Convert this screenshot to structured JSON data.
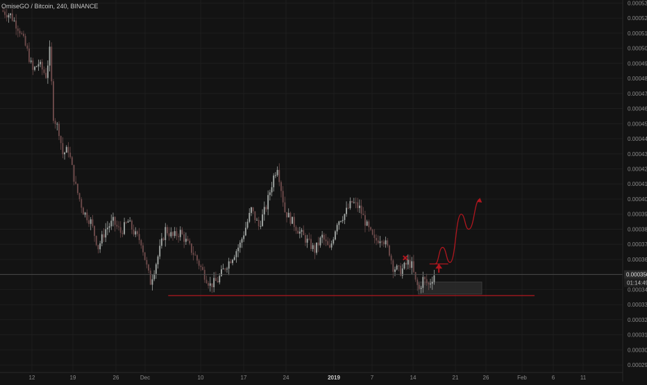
{
  "header": {
    "symbol_title": "OmiseGO / Bitcoin, 240, BINANCE"
  },
  "price_axis": {
    "current_price_label": "0.000350",
    "countdown_label": "01:14:49"
  },
  "colors": {
    "background": "#131313",
    "grid": "#1e1e1e",
    "axis_text": "#8a8a8a",
    "candle_up": "#a4a9a6",
    "candle_down": "#6e4b4b",
    "annotation": "#b0171f",
    "price_tag_bg": "#2a2a2a",
    "price_tag_text": "#e0e0e0"
  },
  "chart_data": {
    "type": "candlestick",
    "title": "OmiseGO / Bitcoin, 240, BINANCE",
    "xlabel": "",
    "ylabel": "",
    "ylim": [
      0.000285,
      0.000532
    ],
    "y_ticks": [
      "0.000290",
      "0.000300",
      "0.000310",
      "0.000320",
      "0.000330",
      "0.000340",
      "0.000350",
      "0.000360",
      "0.000370",
      "0.000380",
      "0.000390",
      "0.000400",
      "0.000410",
      "0.000420",
      "0.000430",
      "0.000440",
      "0.000450",
      "0.000460",
      "0.000470",
      "0.000480",
      "0.000490",
      "0.000500",
      "0.000510",
      "0.000520",
      "0.000530"
    ],
    "x_ticks": [
      "12",
      "19",
      "26",
      "Dec",
      "10",
      "17",
      "24",
      "2019",
      "7",
      "14",
      "21",
      "26",
      "Feb",
      "6",
      "11"
    ],
    "x_tick_bold": [
      "2019"
    ],
    "grid": true,
    "last_price": 0.00035,
    "series": [
      {
        "name": "",
        "trend_points": [
          {
            "t": 0,
            "p": 0.000525
          },
          {
            "t": 5,
            "p": 0.000522
          },
          {
            "t": 10,
            "p": 0.000512
          },
          {
            "t": 14,
            "p": 0.000498
          },
          {
            "t": 17,
            "p": 0.000485
          },
          {
            "t": 20,
            "p": 0.00049
          },
          {
            "t": 24,
            "p": 0.000482
          },
          {
            "t": 26,
            "p": 0.000498
          },
          {
            "t": 28,
            "p": 0.000455
          },
          {
            "t": 31,
            "p": 0.000445
          },
          {
            "t": 33,
            "p": 0.00043
          },
          {
            "t": 36,
            "p": 0.000433
          },
          {
            "t": 40,
            "p": 0.000408
          },
          {
            "t": 44,
            "p": 0.000392
          },
          {
            "t": 48,
            "p": 0.000385
          },
          {
            "t": 52,
            "p": 0.000368
          },
          {
            "t": 56,
            "p": 0.00038
          },
          {
            "t": 60,
            "p": 0.000385
          },
          {
            "t": 64,
            "p": 0.000378
          },
          {
            "t": 68,
            "p": 0.000385
          },
          {
            "t": 72,
            "p": 0.000376
          },
          {
            "t": 75,
            "p": 0.000372
          },
          {
            "t": 78,
            "p": 0.000355
          },
          {
            "t": 80,
            "p": 0.000345
          },
          {
            "t": 84,
            "p": 0.000362
          },
          {
            "t": 88,
            "p": 0.00038
          },
          {
            "t": 92,
            "p": 0.000375
          },
          {
            "t": 96,
            "p": 0.000378
          },
          {
            "t": 100,
            "p": 0.00037
          },
          {
            "t": 104,
            "p": 0.000362
          },
          {
            "t": 108,
            "p": 0.000352
          },
          {
            "t": 112,
            "p": 0.000343
          },
          {
            "t": 116,
            "p": 0.000346
          },
          {
            "t": 120,
            "p": 0.000355
          },
          {
            "t": 124,
            "p": 0.000362
          },
          {
            "t": 128,
            "p": 0.00037
          },
          {
            "t": 132,
            "p": 0.000385
          },
          {
            "t": 134,
            "p": 0.000393
          },
          {
            "t": 138,
            "p": 0.000382
          },
          {
            "t": 142,
            "p": 0.000395
          },
          {
            "t": 146,
            "p": 0.000415
          },
          {
            "t": 148,
            "p": 0.000422
          },
          {
            "t": 152,
            "p": 0.000392
          },
          {
            "t": 156,
            "p": 0.000385
          },
          {
            "t": 160,
            "p": 0.000378
          },
          {
            "t": 164,
            "p": 0.000372
          },
          {
            "t": 168,
            "p": 0.000366
          },
          {
            "t": 172,
            "p": 0.000375
          },
          {
            "t": 176,
            "p": 0.000366
          },
          {
            "t": 180,
            "p": 0.000385
          },
          {
            "t": 184,
            "p": 0.00039
          },
          {
            "t": 188,
            "p": 0.000398
          },
          {
            "t": 192,
            "p": 0.000394
          },
          {
            "t": 196,
            "p": 0.000382
          },
          {
            "t": 200,
            "p": 0.000372
          },
          {
            "t": 204,
            "p": 0.000375
          },
          {
            "t": 208,
            "p": 0.000365
          },
          {
            "t": 210,
            "p": 0.000355
          },
          {
            "t": 214,
            "p": 0.000352
          },
          {
            "t": 218,
            "p": 0.000358
          },
          {
            "t": 220,
            "p": 0.000356
          },
          {
            "t": 222,
            "p": 0.000345
          },
          {
            "t": 224,
            "p": 0.00034
          },
          {
            "t": 226,
            "p": 0.000347
          },
          {
            "t": 229,
            "p": 0.000343
          },
          {
            "t": 232,
            "p": 0.00035
          }
        ],
        "total_candles": 232
      }
    ],
    "annotations": {
      "support_level": 0.000336,
      "cross_marker": {
        "t": 216,
        "p": 0.000361
      },
      "entry_level": 0.000357,
      "projection_points": [
        {
          "t": 232,
          "p": 0.000357
        },
        {
          "t": 236,
          "p": 0.000368
        },
        {
          "t": 240,
          "p": 0.000358
        },
        {
          "t": 246,
          "p": 0.00039
        },
        {
          "t": 250,
          "p": 0.00038
        },
        {
          "t": 256,
          "p": 0.0004
        }
      ],
      "demand_zone": {
        "t_start": 223,
        "t_end": 257,
        "p_low": 0.000337,
        "p_high": 0.000345
      }
    }
  }
}
